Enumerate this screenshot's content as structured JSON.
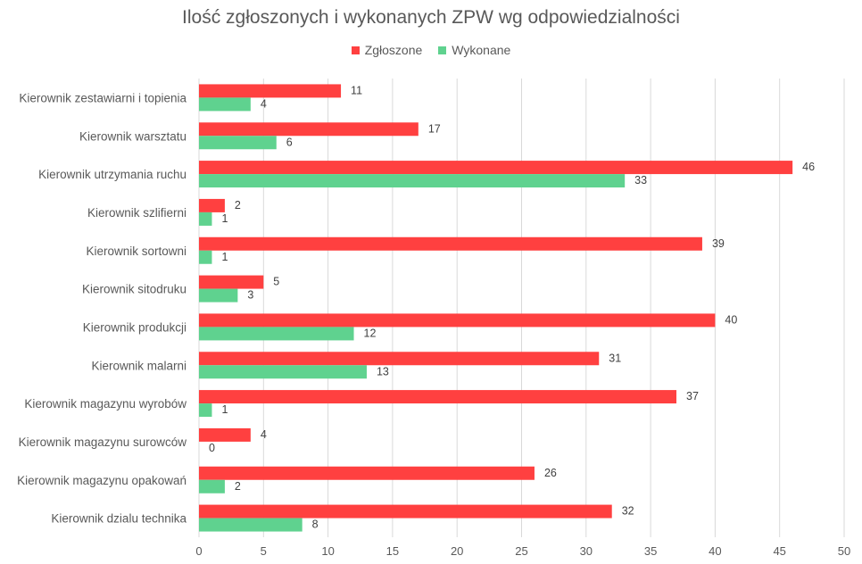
{
  "chart_data": {
    "type": "bar",
    "orientation": "horizontal",
    "title": "Ilość zgłoszonych i wykonanych ZPW wg odpowiedzialności",
    "categories": [
      "Kierownik zestawiarni i topienia",
      "Kierownik warsztatu",
      "Kierownik utrzymania ruchu",
      "Kierownik szlifierni",
      "Kierownik sortowni",
      "Kierownik sitodruku",
      "Kierownik produkcji",
      "Kierownik malarni",
      "Kierownik magazynu wyrobów",
      "Kierownik magazynu surowców",
      "Kierownik magazynu opakowań",
      "Kierownik dzialu technika"
    ],
    "series": [
      {
        "name": "Zgłoszone",
        "color": "#ff4040",
        "values": [
          11,
          17,
          46,
          2,
          39,
          5,
          40,
          31,
          37,
          4,
          26,
          32
        ]
      },
      {
        "name": "Wykonane",
        "color": "#5fd28f",
        "values": [
          4,
          6,
          33,
          1,
          1,
          3,
          12,
          13,
          1,
          0,
          2,
          8
        ]
      }
    ],
    "xlim": [
      0,
      50
    ],
    "xticks": [
      0,
      5,
      10,
      15,
      20,
      25,
      30,
      35,
      40,
      45,
      50
    ],
    "grid": true,
    "legend_position": "top"
  }
}
